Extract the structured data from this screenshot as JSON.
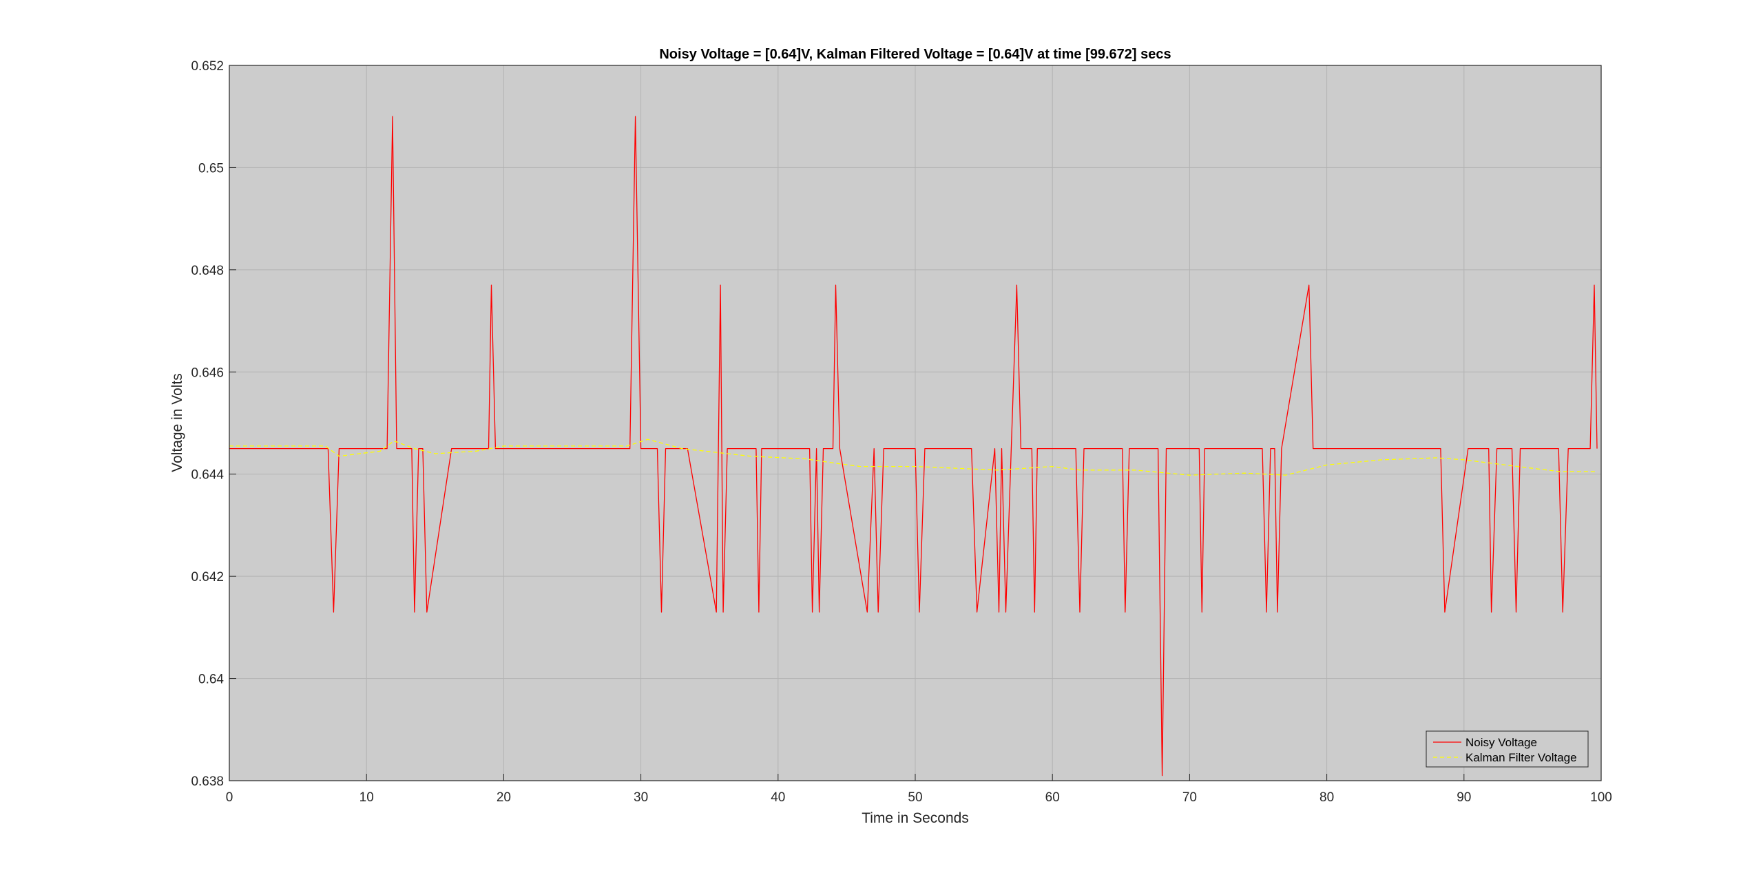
{
  "chart_data": {
    "type": "line",
    "title": "Noisy Voltage = [0.64]V, Kalman Filtered Voltage = [0.64]V at time [99.672] secs",
    "xlabel": "Time in Seconds",
    "ylabel": "Voltage in Volts",
    "xlim": [
      0,
      100
    ],
    "ylim": [
      0.638,
      0.652
    ],
    "xticks": [
      0,
      10,
      20,
      30,
      40,
      50,
      60,
      70,
      80,
      90,
      100
    ],
    "xtick_labels": [
      "0",
      "10",
      "20",
      "30",
      "40",
      "50",
      "60",
      "70",
      "80",
      "90",
      "100"
    ],
    "yticks": [
      0.638,
      0.64,
      0.642,
      0.644,
      0.646,
      0.648,
      0.65,
      0.652
    ],
    "ytick_labels": [
      "0.638",
      "0.64",
      "0.642",
      "0.644",
      "0.646",
      "0.648",
      "0.65",
      "0.652"
    ],
    "grid": true,
    "plot_background": "#cccccc",
    "legend_position": "bottom-right",
    "series": [
      {
        "name": "Noisy Voltage",
        "color": "#ff0000",
        "style": "solid",
        "x": [
          0,
          7.2,
          7.6,
          8.0,
          11.5,
          11.9,
          12.2,
          13.3,
          13.5,
          13.8,
          14.1,
          14.4,
          16.2,
          18.9,
          19.1,
          19.4,
          29.2,
          29.6,
          30.0,
          31.2,
          31.5,
          31.8,
          33.4,
          35.5,
          35.8,
          36.0,
          36.3,
          38.4,
          38.6,
          38.8,
          42.3,
          42.5,
          42.8,
          43.0,
          43.3,
          44.0,
          44.2,
          44.5,
          46.5,
          47.0,
          47.3,
          47.7,
          50.0,
          50.3,
          50.7,
          54.1,
          54.5,
          55.8,
          56.1,
          56.3,
          56.6,
          57.0,
          57.4,
          57.7,
          58.5,
          58.7,
          58.9,
          61.7,
          62.0,
          62.3,
          65.1,
          65.3,
          65.6,
          67.7,
          68.0,
          68.3,
          70.7,
          70.9,
          71.1,
          75.3,
          75.6,
          75.9,
          76.2,
          76.4,
          76.7,
          78.7,
          79.0,
          88.3,
          88.6,
          90.3,
          91.8,
          92.0,
          92.4,
          93.5,
          93.8,
          94.1,
          96.9,
          97.2,
          97.6,
          98.7,
          99.2,
          99.5,
          99.7
        ],
        "y": [
          0.6445,
          0.6445,
          0.6413,
          0.6445,
          0.6445,
          0.651,
          0.6445,
          0.6445,
          0.6413,
          0.6445,
          0.6445,
          0.6413,
          0.6445,
          0.6445,
          0.6477,
          0.6445,
          0.6445,
          0.651,
          0.6445,
          0.6445,
          0.6413,
          0.6445,
          0.6445,
          0.6413,
          0.6477,
          0.6413,
          0.6445,
          0.6445,
          0.6413,
          0.6445,
          0.6445,
          0.6413,
          0.6445,
          0.6413,
          0.6445,
          0.6445,
          0.6477,
          0.6445,
          0.6413,
          0.6445,
          0.6413,
          0.6445,
          0.6445,
          0.6413,
          0.6445,
          0.6445,
          0.6413,
          0.6445,
          0.6413,
          0.6445,
          0.6413,
          0.6445,
          0.6477,
          0.6445,
          0.6445,
          0.6413,
          0.6445,
          0.6445,
          0.6413,
          0.6445,
          0.6445,
          0.6413,
          0.6445,
          0.6445,
          0.6381,
          0.6445,
          0.6445,
          0.6413,
          0.6445,
          0.6445,
          0.6413,
          0.6445,
          0.6445,
          0.6413,
          0.6445,
          0.6477,
          0.6445,
          0.6445,
          0.6413,
          0.6445,
          0.6445,
          0.6413,
          0.6445,
          0.6445,
          0.6413,
          0.6445,
          0.6445,
          0.6413,
          0.6445,
          0.6445,
          0.6445,
          0.6477,
          0.6445
        ]
      },
      {
        "name": "Kalman Filter Voltage",
        "color": "#ffff00",
        "style": "dashed",
        "x": [
          0,
          7.0,
          8.0,
          11.0,
          12.0,
          13.5,
          15.0,
          18.0,
          20.0,
          29.0,
          30.5,
          33.0,
          38.0,
          42.0,
          44.0,
          46.0,
          50.0,
          56.0,
          60.0,
          62.0,
          66.0,
          70.0,
          74.0,
          77.0,
          80.0,
          84.0,
          88.0,
          90.0,
          93.0,
          97.0,
          99.7
        ],
        "y": [
          0.64455,
          0.64455,
          0.64435,
          0.64445,
          0.64465,
          0.6445,
          0.6444,
          0.64445,
          0.64455,
          0.64455,
          0.64468,
          0.6445,
          0.64435,
          0.6443,
          0.64422,
          0.64415,
          0.64415,
          0.64408,
          0.64415,
          0.64408,
          0.64408,
          0.64398,
          0.64402,
          0.64398,
          0.64418,
          0.64428,
          0.64432,
          0.64428,
          0.64418,
          0.64405,
          0.64405
        ]
      }
    ]
  }
}
